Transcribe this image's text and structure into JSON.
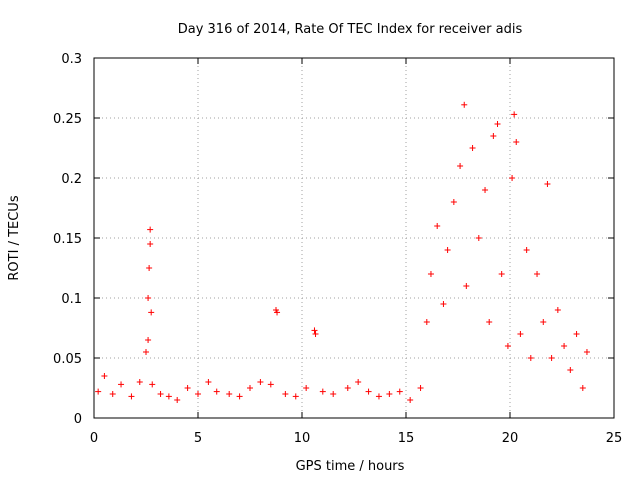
{
  "chart_data": {
    "type": "scatter",
    "title": "Day 316 of 2014, Rate Of TEC Index for receiver adis",
    "xlabel": "GPS time / hours",
    "ylabel": "ROTI / TECUs",
    "xlim": [
      0,
      25
    ],
    "ylim": [
      0,
      0.3
    ],
    "grid": true,
    "marker": "+",
    "marker_color": "#ff0000",
    "x_ticks": [
      "0",
      "5",
      "10",
      "15",
      "20",
      "25"
    ],
    "y_ticks": [
      "0",
      "0.05",
      "0.1",
      "0.15",
      "0.2",
      "0.25",
      "0.3"
    ],
    "series": [
      {
        "name": "ROTI",
        "x": [
          0.2,
          0.5,
          0.9,
          1.3,
          1.8,
          2.2,
          2.5,
          2.6,
          2.65,
          2.7,
          2.7,
          2.75,
          2.6,
          2.8,
          3.2,
          3.6,
          4.0,
          4.5,
          5.0,
          5.5,
          5.9,
          6.5,
          7.0,
          7.5,
          8.0,
          8.5,
          8.75,
          8.8,
          9.2,
          9.7,
          10.2,
          10.6,
          10.65,
          11.0,
          11.5,
          12.2,
          12.7,
          13.2,
          13.7,
          14.2,
          14.7,
          15.2,
          15.7,
          16.0,
          16.2,
          16.5,
          16.8,
          17.0,
          17.3,
          17.6,
          17.8,
          17.9,
          18.2,
          18.5,
          18.8,
          19.0,
          19.2,
          19.4,
          19.6,
          19.9,
          20.1,
          20.2,
          20.3,
          20.5,
          20.8,
          21.0,
          21.3,
          21.6,
          21.8,
          22.0,
          22.3,
          22.6,
          22.9,
          23.2,
          23.5,
          23.7
        ],
        "y": [
          0.022,
          0.035,
          0.02,
          0.028,
          0.018,
          0.03,
          0.055,
          0.1,
          0.125,
          0.145,
          0.157,
          0.088,
          0.065,
          0.028,
          0.02,
          0.018,
          0.015,
          0.025,
          0.02,
          0.03,
          0.022,
          0.02,
          0.018,
          0.025,
          0.03,
          0.028,
          0.09,
          0.088,
          0.02,
          0.018,
          0.025,
          0.073,
          0.07,
          0.022,
          0.02,
          0.025,
          0.03,
          0.022,
          0.018,
          0.02,
          0.022,
          0.015,
          0.025,
          0.08,
          0.12,
          0.16,
          0.095,
          0.14,
          0.18,
          0.21,
          0.261,
          0.11,
          0.225,
          0.15,
          0.19,
          0.08,
          0.235,
          0.245,
          0.12,
          0.06,
          0.2,
          0.253,
          0.23,
          0.07,
          0.14,
          0.05,
          0.12,
          0.08,
          0.195,
          0.05,
          0.09,
          0.06,
          0.04,
          0.07,
          0.025,
          0.055
        ]
      }
    ]
  }
}
